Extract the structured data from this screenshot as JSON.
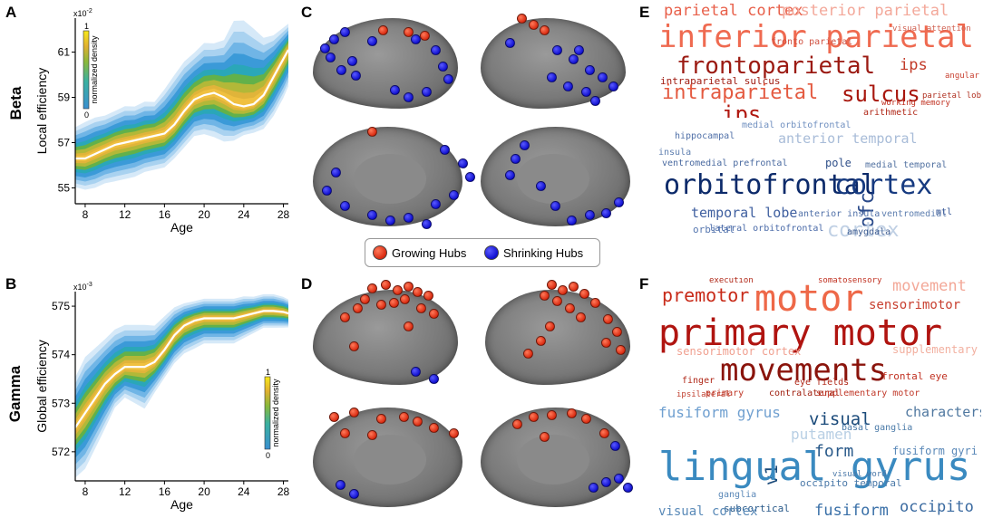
{
  "panels": {
    "A": "A",
    "B": "B",
    "C": "C",
    "D": "D",
    "E": "E",
    "F": "F"
  },
  "rows": {
    "beta": "Beta",
    "gamma": "Gamma"
  },
  "chart_data": [
    {
      "type": "area",
      "panel": "A",
      "xlabel": "Age",
      "ylabel": "Local efficiency",
      "exponent": "x10",
      "exponent_power": "-2",
      "xticks": [
        "8",
        "12",
        "16",
        "20",
        "24",
        "28"
      ],
      "yticks": [
        "55",
        "57",
        "59",
        "61"
      ],
      "xlim": [
        7,
        28.5
      ],
      "ylim": [
        54.3,
        62.5
      ],
      "x": [
        7,
        8,
        9,
        10,
        11,
        12,
        13,
        14,
        15,
        16,
        17,
        18,
        19,
        20,
        21,
        22,
        23,
        24,
        25,
        26,
        27,
        28,
        28.5
      ],
      "mean": [
        56.3,
        56.3,
        56.5,
        56.7,
        56.9,
        57.0,
        57.1,
        57.2,
        57.3,
        57.4,
        57.8,
        58.4,
        58.9,
        59.1,
        59.2,
        59.0,
        58.7,
        58.6,
        58.7,
        59.1,
        59.9,
        60.7,
        61.1
      ],
      "lower": [
        55.2,
        55.1,
        55.2,
        55.4,
        55.5,
        55.6,
        55.7,
        55.9,
        56.0,
        56.1,
        56.5,
        57.0,
        57.5,
        57.6,
        57.5,
        57.3,
        57.3,
        57.5,
        57.6,
        57.8,
        58.4,
        59.2,
        59.7
      ],
      "upper": [
        57.5,
        57.7,
        57.9,
        58.0,
        58.2,
        58.4,
        58.4,
        58.6,
        58.6,
        59.1,
        59.7,
        60.3,
        60.7,
        61.1,
        61.1,
        61.2,
        61.9,
        61.9,
        61.6,
        61.3,
        61.5,
        61.9,
        62.1
      ],
      "colorbar": {
        "label": "normalized density",
        "max": "1",
        "min": "0"
      }
    },
    {
      "type": "area",
      "panel": "B",
      "xlabel": "Age",
      "ylabel": "Global efficiency",
      "exponent": "x10",
      "exponent_power": "-3",
      "xticks": [
        "8",
        "12",
        "16",
        "20",
        "24",
        "28"
      ],
      "yticks": [
        "572",
        "573",
        "574",
        "575"
      ],
      "xlim": [
        7,
        28.5
      ],
      "ylim": [
        571.4,
        575.3
      ],
      "x": [
        7,
        8,
        9,
        10,
        11,
        12,
        13,
        14,
        15,
        16,
        17,
        18,
        19,
        20,
        21,
        22,
        23,
        24,
        25,
        26,
        27,
        28,
        28.5
      ],
      "mean": [
        572.5,
        572.8,
        573.1,
        573.4,
        573.6,
        573.75,
        573.75,
        573.75,
        573.85,
        574.1,
        574.4,
        574.6,
        574.7,
        574.75,
        574.75,
        574.75,
        574.75,
        574.8,
        574.85,
        574.9,
        574.9,
        574.88,
        574.85
      ],
      "lower": [
        571.6,
        571.8,
        572.2,
        572.6,
        573.0,
        573.2,
        573.1,
        573.0,
        573.3,
        573.6,
        573.9,
        574.1,
        574.2,
        574.3,
        574.3,
        574.3,
        574.3,
        574.4,
        574.5,
        574.6,
        574.6,
        574.6,
        574.6
      ],
      "upper": [
        573.4,
        573.8,
        574.0,
        574.2,
        574.4,
        574.5,
        574.5,
        574.5,
        574.5,
        574.7,
        574.9,
        575.0,
        575.05,
        575.1,
        575.1,
        575.1,
        575.1,
        575.15,
        575.15,
        575.2,
        575.2,
        575.15,
        575.1
      ],
      "colorbar": {
        "label": "normalized density",
        "max": "1",
        "min": "0"
      }
    }
  ],
  "legend": {
    "growing": "Growing Hubs",
    "shrinking": "Shrinking Hubs"
  },
  "wordclouds": {
    "E_top": [
      {
        "t": "parietal cortex",
        "s": 17,
        "c": "#e8604a"
      },
      {
        "t": "posterior parietal",
        "s": 17,
        "c": "#f3a89a"
      },
      {
        "t": "inferior parietal",
        "s": 34,
        "c": "#ef6a50"
      },
      {
        "t": "frontoparietal",
        "s": 26,
        "c": "#9b1a12"
      },
      {
        "t": "ips",
        "s": 17,
        "c": "#c23a28"
      },
      {
        "t": "intraparietal sulcus",
        "s": 11,
        "c": "#a01c12"
      },
      {
        "t": "intraparietal",
        "s": 22,
        "c": "#e45a40"
      },
      {
        "t": "sulcus",
        "s": 24,
        "c": "#a8170e"
      },
      {
        "t": "ips",
        "s": 24,
        "c": "#b01810"
      },
      {
        "t": "arithmetic",
        "s": 10,
        "c": "#b02818"
      },
      {
        "t": "working memory",
        "s": 9,
        "c": "#c03020"
      },
      {
        "t": "parietal lobule",
        "s": 9,
        "c": "#b03020"
      },
      {
        "t": "angular",
        "s": 9,
        "c": "#c84030"
      },
      {
        "t": "visual attention",
        "s": 9,
        "c": "#d06050"
      },
      {
        "t": "fronto parietal",
        "s": 10,
        "c": "#d05040"
      }
    ],
    "E_bottom": [
      {
        "t": "medial orbitofrontal",
        "s": 10,
        "c": "#7090c0"
      },
      {
        "t": "hippocampal",
        "s": 10,
        "c": "#5070a8"
      },
      {
        "t": "anterior temporal",
        "s": 15,
        "c": "#a8bcd8"
      },
      {
        "t": "insula",
        "s": 10,
        "c": "#6080b0"
      },
      {
        "t": "ventromedial prefrontal",
        "s": 10,
        "c": "#4a6aa0"
      },
      {
        "t": "pole",
        "s": 12,
        "c": "#30508a"
      },
      {
        "t": "medial temporal",
        "s": 10,
        "c": "#5070a0"
      },
      {
        "t": "orbitofrontal",
        "s": 30,
        "c": "#0c2a6a"
      },
      {
        "t": "cortex",
        "s": 30,
        "c": "#163a80"
      },
      {
        "t": "ofc",
        "s": 22,
        "c": "#2a4a8a"
      },
      {
        "t": "temporal lobe",
        "s": 15,
        "c": "#4060a0"
      },
      {
        "t": "anterior insula",
        "s": 10,
        "c": "#5070a8"
      },
      {
        "t": "ventromedial",
        "s": 10,
        "c": "#6080b0"
      },
      {
        "t": "mtl",
        "s": 10,
        "c": "#3a5a98"
      },
      {
        "t": "orbital",
        "s": 11,
        "c": "#5878b0"
      },
      {
        "t": "cortex",
        "s": 22,
        "c": "#c0d0e4"
      },
      {
        "t": "lateral orbitofrontal",
        "s": 10,
        "c": "#4a6aa8"
      },
      {
        "t": "amygdala",
        "s": 10,
        "c": "#3a5a90"
      }
    ],
    "F_top": [
      {
        "t": "execution",
        "s": 9,
        "c": "#b02818"
      },
      {
        "t": "somatosensory",
        "s": 9,
        "c": "#c03020"
      },
      {
        "t": "premotor",
        "s": 20,
        "c": "#c82a18"
      },
      {
        "t": "motor",
        "s": 40,
        "c": "#ee6848"
      },
      {
        "t": "movement",
        "s": 17,
        "c": "#f3a898"
      },
      {
        "t": "sensorimotor",
        "s": 14,
        "c": "#c84030"
      },
      {
        "t": "primary motor",
        "s": 40,
        "c": "#b01410"
      },
      {
        "t": "sensorimotor cortex",
        "s": 12,
        "c": "#f0a090"
      },
      {
        "t": "supplementary",
        "s": 12,
        "c": "#f2b0a0"
      },
      {
        "t": "movements",
        "s": 34,
        "c": "#8a140c"
      },
      {
        "t": "finger",
        "s": 10,
        "c": "#b02818"
      },
      {
        "t": "eye fields",
        "s": 10,
        "c": "#b02818"
      },
      {
        "t": "frontal eye",
        "s": 11,
        "c": "#c03020"
      },
      {
        "t": "contralateral",
        "s": 10,
        "c": "#a02010"
      },
      {
        "t": "supplementary motor",
        "s": 10,
        "c": "#c03828"
      },
      {
        "t": "ipsilateral",
        "s": 9,
        "c": "#c04030"
      },
      {
        "t": "primary",
        "s": 10,
        "c": "#c03828"
      }
    ],
    "F_bottom": [
      {
        "t": "fusiform gyrus",
        "s": 16,
        "c": "#70a0d0"
      },
      {
        "t": "visual",
        "s": 19,
        "c": "#1a4a7a"
      },
      {
        "t": "characters",
        "s": 15,
        "c": "#5078a0"
      },
      {
        "t": "putamen",
        "s": 16,
        "c": "#b8cfe4"
      },
      {
        "t": "form",
        "s": 18,
        "c": "#2a5a8a"
      },
      {
        "t": "fusiform gyri",
        "s": 12,
        "c": "#5a88b8"
      },
      {
        "t": "v1",
        "s": 19,
        "c": "#1a4a7a"
      },
      {
        "t": "lingual gyrus",
        "s": 44,
        "c": "#3a8ac0"
      },
      {
        "t": "basal ganglia",
        "s": 10,
        "c": "#4a7aa8"
      },
      {
        "t": "ganglia",
        "s": 10,
        "c": "#5a88b8"
      },
      {
        "t": "subcortical",
        "s": 11,
        "c": "#2a5a8a"
      },
      {
        "t": "occipito temporal",
        "s": 11,
        "c": "#4a78a8"
      },
      {
        "t": "visual cortex",
        "s": 14,
        "c": "#5a8ab8"
      },
      {
        "t": "fusiform",
        "s": 17,
        "c": "#3a70a8"
      },
      {
        "t": "occipito",
        "s": 17,
        "c": "#3a6aa0"
      },
      {
        "t": "visual word",
        "s": 9,
        "c": "#4a78a8"
      }
    ]
  },
  "colors": {
    "growing": "#e23a1c",
    "shrinking": "#1515d0"
  }
}
